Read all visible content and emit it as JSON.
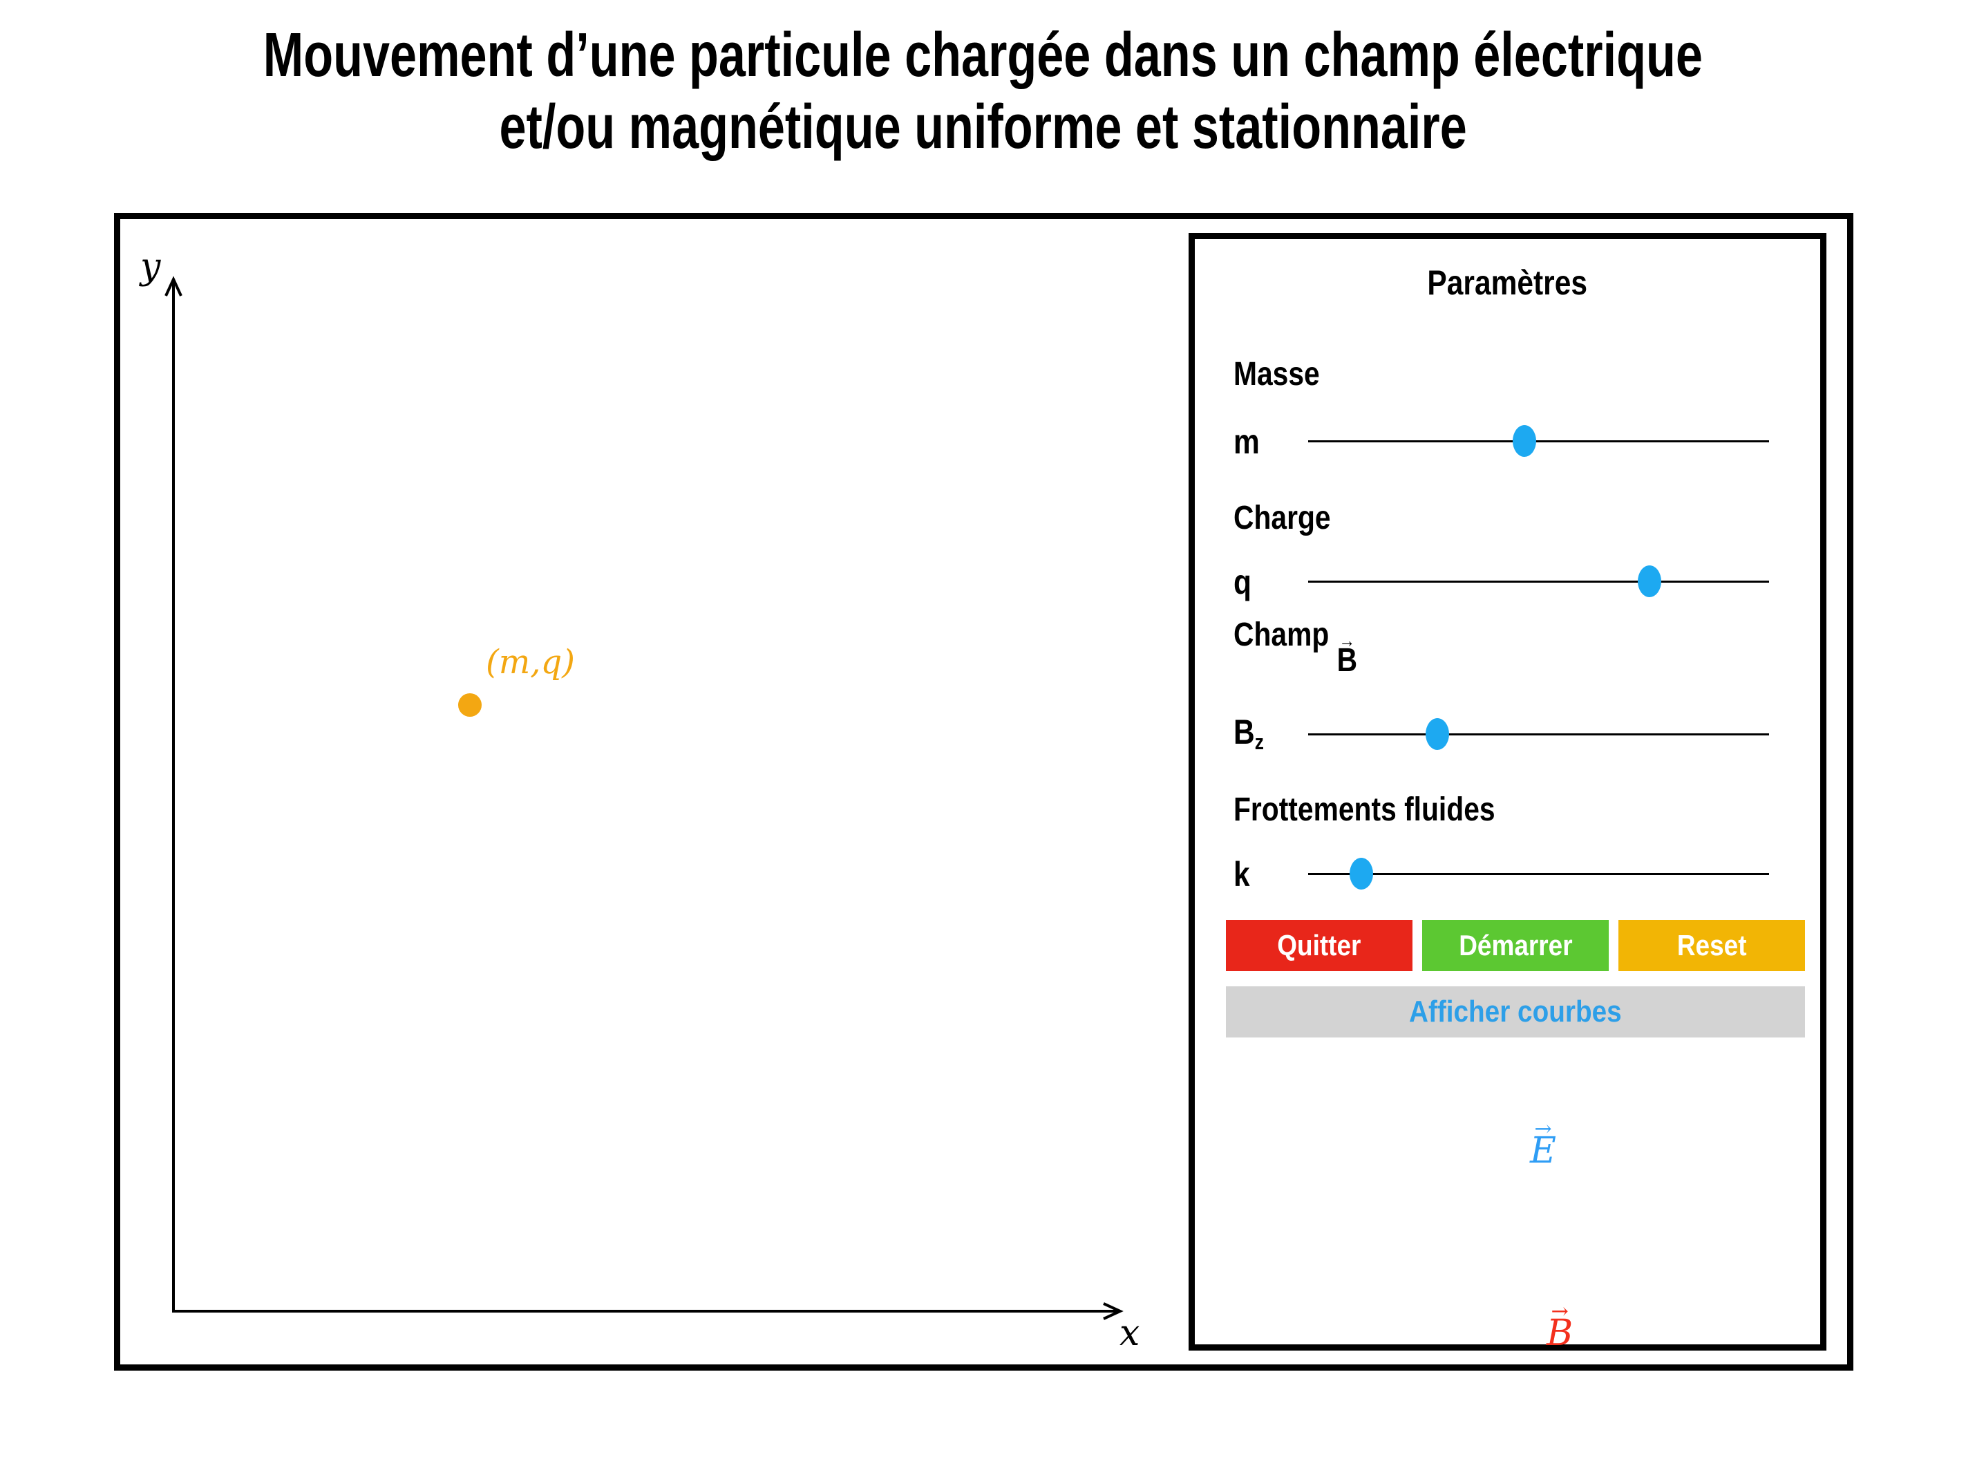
{
  "title": {
    "line1": "Mouvement d’une particule chargée dans un champ électrique",
    "line2": "et/ou magnétique uniforme et stationnaire"
  },
  "simulation": {
    "y_axis_label": "y",
    "x_axis_label": "x",
    "particle_label": "(m,q)"
  },
  "panel": {
    "title": "Paramètres",
    "groups": [
      {
        "label": "Masse",
        "param": "m",
        "slider_percent": 47
      },
      {
        "label": "Charge",
        "param": "q",
        "slider_percent": 74
      },
      {
        "label": "Champ",
        "vector": "B",
        "param_base": "B",
        "param_sub": "z",
        "slider_percent": 28
      },
      {
        "label": "Frottements fluides",
        "param": "k",
        "slider_percent": 11.5
      }
    ],
    "buttons": {
      "quit": "Quitter",
      "start": "Démarrer",
      "reset": "Reset",
      "show_curves": "Afficher courbes"
    },
    "fields": {
      "electric": "E",
      "magnetic": "B"
    }
  },
  "icons": {
    "vector_arrow": "→"
  },
  "colors": {
    "slider_handle": "#1da9f1",
    "quit_button": "#e8261a",
    "start_button": "#5cc832",
    "reset_button": "#f2b505",
    "show_curves_bg": "#d3d3d3",
    "show_curves_text": "#2d9fe8",
    "particle": "#f3a712",
    "electric_field": "#2e9df5",
    "magnetic_field": "#f3301d",
    "axes": "#000000"
  }
}
